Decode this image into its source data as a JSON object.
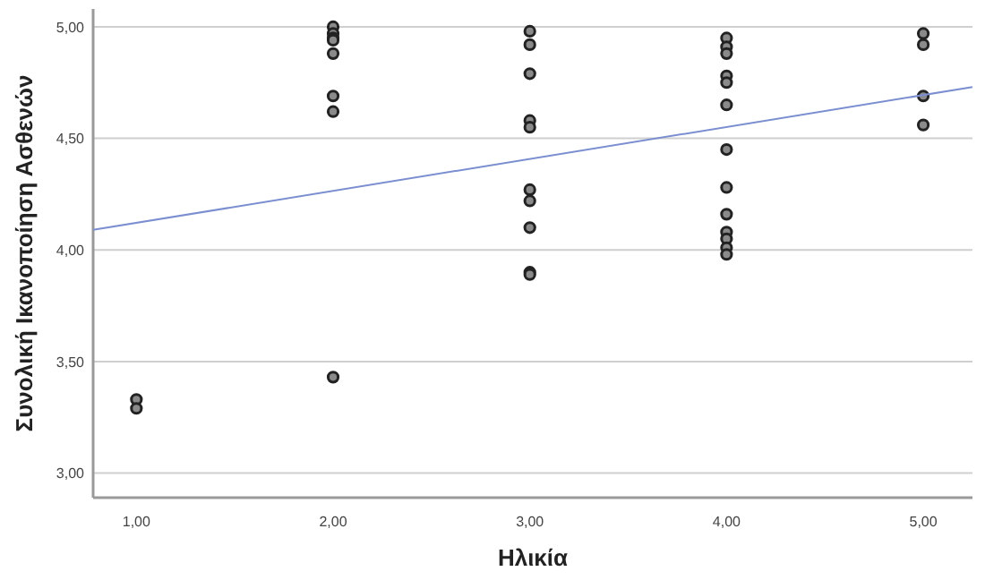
{
  "chart_data": {
    "type": "scatter",
    "xlabel": "Ηλικία",
    "ylabel": "Συνολική Ικανοποίηση Ασθενών",
    "xlim": [
      0.78,
      5.25
    ],
    "ylim": [
      2.89,
      5.08
    ],
    "xticks": [
      {
        "value": 1,
        "label": "1,00"
      },
      {
        "value": 2,
        "label": "2,00"
      },
      {
        "value": 3,
        "label": "3,00"
      },
      {
        "value": 4,
        "label": "4,00"
      },
      {
        "value": 5,
        "label": "5,00"
      }
    ],
    "yticks": [
      {
        "value": 3,
        "label": "3,00"
      },
      {
        "value": 3.5,
        "label": "3,50"
      },
      {
        "value": 4,
        "label": "4,00"
      },
      {
        "value": 4.5,
        "label": "4,50"
      },
      {
        "value": 5,
        "label": "5,00"
      }
    ],
    "grid": "y",
    "marker": "circle",
    "series": [
      {
        "color": "#222222",
        "x": [
          1,
          1,
          2,
          2,
          2,
          2,
          2,
          2,
          2,
          2,
          3,
          3,
          3,
          3,
          3,
          3,
          3,
          3,
          3,
          3,
          4,
          4,
          4,
          4,
          4,
          4,
          4,
          4,
          4,
          4,
          4,
          4,
          4,
          5,
          5,
          5,
          5
        ],
        "values": [
          3.33,
          3.29,
          5.0,
          4.97,
          4.95,
          4.94,
          4.88,
          4.69,
          4.62,
          3.43,
          4.98,
          4.92,
          4.79,
          4.58,
          4.55,
          4.27,
          4.22,
          4.1,
          3.9,
          3.89,
          4.95,
          4.91,
          4.88,
          4.78,
          4.75,
          4.65,
          4.45,
          4.28,
          4.16,
          4.08,
          4.05,
          4.01,
          3.98,
          4.97,
          4.92,
          4.69,
          4.56
        ]
      },
      {
        "type": "line",
        "color": "#7b8fd0",
        "x": [
          0.78,
          5.25
        ],
        "values": [
          4.09,
          4.73
        ],
        "marker": "none",
        "line_style": "solid"
      }
    ]
  }
}
